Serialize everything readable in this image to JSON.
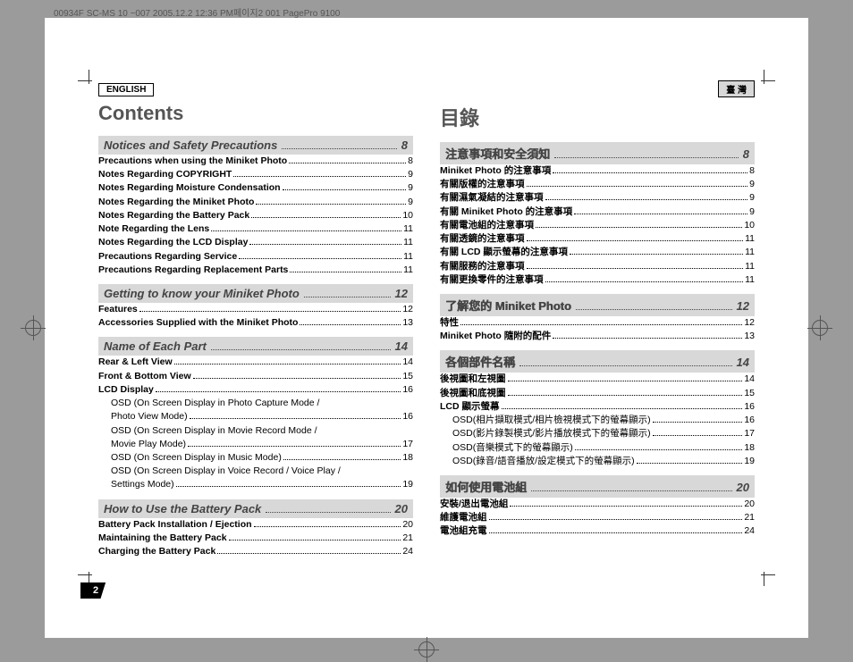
{
  "header_strip": "00934F SC-MS 10 ~007  2005.12.2 12:36 PM페이지2   001 PagePro 9100",
  "left": {
    "lang": "ENGLISH",
    "title": "Contents",
    "sections": [
      {
        "head": "Notices and Safety Precautions",
        "page": "8",
        "rows": [
          {
            "t": "Precautions when using the Miniket Photo",
            "p": "8",
            "b": 1
          },
          {
            "t": "Notes Regarding COPYRIGHT",
            "p": "9",
            "b": 1
          },
          {
            "t": "Notes Regarding Moisture Condensation",
            "p": "9",
            "b": 1
          },
          {
            "t": "Notes Regarding the Miniket Photo",
            "p": "9",
            "b": 1
          },
          {
            "t": "Notes Regarding the Battery Pack",
            "p": "10",
            "b": 1
          },
          {
            "t": "Note Regarding the Lens",
            "p": "11",
            "b": 1
          },
          {
            "t": "Notes Regarding the LCD Display",
            "p": "11",
            "b": 1
          },
          {
            "t": "Precautions Regarding Service",
            "p": "11",
            "b": 1
          },
          {
            "t": "Precautions Regarding Replacement Parts",
            "p": "11",
            "b": 1
          }
        ]
      },
      {
        "head": "Getting to know your Miniket Photo",
        "page": "12",
        "rows": [
          {
            "t": "Features",
            "p": "12",
            "b": 1
          },
          {
            "t": "Accessories Supplied with the Miniket Photo",
            "p": "13",
            "b": 1
          }
        ]
      },
      {
        "head": "Name of Each Part",
        "page": "14",
        "rows": [
          {
            "t": "Rear & Left View",
            "p": "14",
            "b": 1
          },
          {
            "t": "Front & Bottom View",
            "p": "15",
            "b": 1
          },
          {
            "t": "LCD Display",
            "p": "16",
            "b": 1
          },
          {
            "t": "OSD (On Screen Display in Photo Capture Mode /",
            "wrap": 1
          },
          {
            "t": "Photo View Mode)",
            "p": "16",
            "sub": 1
          },
          {
            "t": "OSD (On Screen Display in Movie Record Mode /",
            "wrap": 1
          },
          {
            "t": "Movie Play Mode)",
            "p": "17",
            "sub": 1
          },
          {
            "t": "OSD (On Screen Display in Music Mode)",
            "p": "18",
            "sub": 1
          },
          {
            "t": "OSD (On Screen Display in Voice Record / Voice Play /",
            "wrap": 1
          },
          {
            "t": "Settings Mode)",
            "p": "19",
            "sub": 1
          }
        ]
      },
      {
        "head": "How to Use the Battery Pack",
        "page": "20",
        "rows": [
          {
            "t": "Battery Pack Installation / Ejection",
            "p": "20",
            "b": 1
          },
          {
            "t": "Maintaining the Battery Pack",
            "p": "21",
            "b": 1
          },
          {
            "t": "Charging the Battery Pack",
            "p": "24",
            "b": 1
          }
        ]
      }
    ],
    "page_number": "2"
  },
  "right": {
    "lang": "臺 灣",
    "title": "目錄",
    "sections": [
      {
        "head": "注意事項和安全須知",
        "page": "8",
        "cn": 1,
        "rows": [
          {
            "t": "Miniket Photo 的注意事項",
            "p": "8",
            "b": 1
          },
          {
            "t": "有關版權的注意事項",
            "p": "9",
            "b": 1
          },
          {
            "t": "有關濕氣凝結的注意事項",
            "p": "9",
            "b": 1
          },
          {
            "t": "有關 Miniket Photo 的注意事項",
            "p": "9",
            "b": 1
          },
          {
            "t": "有關電池組的注意事項",
            "p": "10",
            "b": 1
          },
          {
            "t": "有關透鏡的注意事項",
            "p": "11",
            "b": 1
          },
          {
            "t": "有關 LCD 顯示螢幕的注意事項",
            "p": "11",
            "b": 1
          },
          {
            "t": "有關服務的注意事項",
            "p": "11",
            "b": 1
          },
          {
            "t": "有關更換零件的注意事項",
            "p": "11",
            "b": 1
          }
        ]
      },
      {
        "head": "了解您的 Miniket Photo",
        "page": "12",
        "cn": 1,
        "rows": [
          {
            "t": "特性",
            "p": "12",
            "b": 1
          },
          {
            "t": "Miniket Photo 隨附的配件",
            "p": "13",
            "b": 1
          }
        ]
      },
      {
        "head": "各個部件名稱",
        "page": "14",
        "cn": 1,
        "rows": [
          {
            "t": "後視圖和左視圖",
            "p": "14",
            "b": 1
          },
          {
            "t": "後視圖和底視圖",
            "p": "15",
            "b": 1
          },
          {
            "t": "LCD 顯示螢幕",
            "p": "16",
            "b": 1
          },
          {
            "t": "OSD(相片擷取模式/相片檢視模式下的螢幕顯示)",
            "p": "16",
            "sub": 1
          },
          {
            "t": "OSD(影片錄製模式/影片播放模式下的螢幕顯示)",
            "p": "17",
            "sub": 1
          },
          {
            "t": "OSD(音樂模式下的螢幕顯示)",
            "p": "18",
            "sub": 1
          },
          {
            "t": "OSD(錄音/語音播放/設定模式下的螢幕顯示)",
            "p": "19",
            "sub": 1
          }
        ]
      },
      {
        "head": "如何使用電池組",
        "page": "20",
        "cn": 1,
        "rows": [
          {
            "t": "安裝/退出電池組",
            "p": "20",
            "b": 1
          },
          {
            "t": "維護電池組",
            "p": "21",
            "b": 1
          },
          {
            "t": "電池組充電",
            "p": "24",
            "b": 1
          }
        ]
      }
    ]
  }
}
